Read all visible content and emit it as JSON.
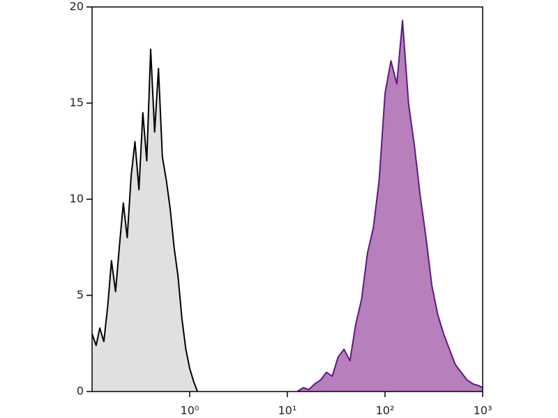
{
  "chart_data": {
    "type": "area",
    "xscale": "log",
    "xlim": [
      0.1,
      1000
    ],
    "xticks": [
      {
        "value": 1,
        "label": "10⁰"
      },
      {
        "value": 10,
        "label": "10¹"
      },
      {
        "value": 100,
        "label": "10²"
      },
      {
        "value": 1000,
        "label": "10³"
      }
    ],
    "ylim": [
      0,
      20
    ],
    "yticks": [
      0,
      5,
      10,
      15,
      20
    ],
    "series": [
      {
        "color": "#000000",
        "fill": "#e0e0e0",
        "x": [
          0.1,
          0.11,
          0.12,
          0.132,
          0.145,
          0.158,
          0.174,
          0.191,
          0.209,
          0.229,
          0.251,
          0.275,
          0.302,
          0.331,
          0.363,
          0.398,
          0.437,
          0.479,
          0.525,
          0.575,
          0.631,
          0.692,
          0.759,
          0.832,
          0.912,
          1.0,
          1.1,
          1.2
        ],
        "values": [
          3.0,
          2.4,
          3.3,
          2.6,
          4.5,
          6.8,
          5.2,
          7.6,
          9.8,
          8.0,
          11.2,
          13.0,
          10.5,
          14.5,
          12.0,
          17.8,
          13.5,
          16.8,
          12.2,
          11.0,
          9.5,
          7.5,
          6.0,
          3.8,
          2.2,
          1.2,
          0.5,
          0
        ]
      },
      {
        "color": "#5a1a80",
        "fill": "#b77fbb",
        "x": [
          12.6,
          14.5,
          16.6,
          19.1,
          21.9,
          25.1,
          28.8,
          33.1,
          38.0,
          43.7,
          50.1,
          57.5,
          66.1,
          75.9,
          87.1,
          100,
          115,
          132,
          151,
          174,
          200,
          229,
          263,
          302,
          347,
          398,
          457,
          525,
          603,
          692,
          794,
          912,
          1000
        ],
        "values": [
          0,
          0.2,
          0.1,
          0.4,
          0.6,
          1.0,
          0.8,
          1.8,
          2.2,
          1.6,
          3.5,
          4.8,
          7.2,
          8.5,
          11.0,
          15.5,
          17.2,
          16.0,
          19.3,
          15.0,
          12.8,
          10.2,
          8.0,
          5.5,
          4.0,
          3.0,
          2.2,
          1.4,
          1.0,
          0.6,
          0.4,
          0.3,
          0.2
        ]
      }
    ]
  }
}
